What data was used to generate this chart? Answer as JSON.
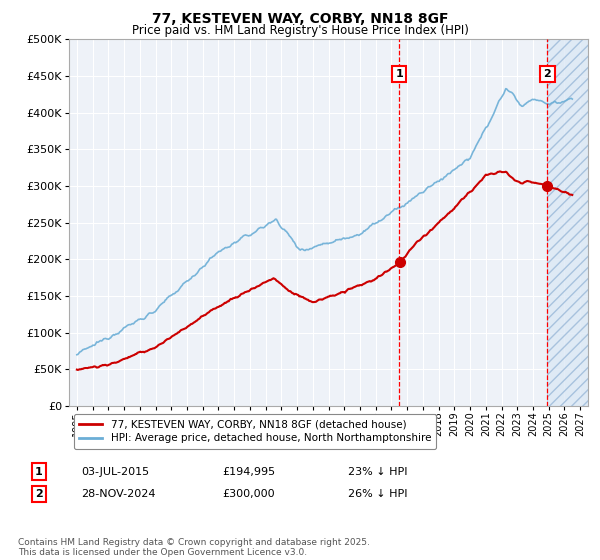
{
  "title": "77, KESTEVEN WAY, CORBY, NN18 8GF",
  "subtitle": "Price paid vs. HM Land Registry's House Price Index (HPI)",
  "ylim": [
    0,
    500000
  ],
  "yticks": [
    0,
    50000,
    100000,
    150000,
    200000,
    250000,
    300000,
    350000,
    400000,
    450000,
    500000
  ],
  "xlim_start": 1994.5,
  "xlim_end": 2027.5,
  "hpi_color": "#6baed6",
  "price_color": "#cc0000",
  "marker1_date": 2015.5,
  "marker2_date": 2024.92,
  "transaction1": {
    "date": "03-JUL-2015",
    "price": 194995,
    "pct": "23% ↓ HPI"
  },
  "transaction2": {
    "date": "28-NOV-2024",
    "price": 300000,
    "pct": "26% ↓ HPI"
  },
  "legend_label1": "77, KESTEVEN WAY, CORBY, NN18 8GF (detached house)",
  "legend_label2": "HPI: Average price, detached house, North Northamptonshire",
  "footer": "Contains HM Land Registry data © Crown copyright and database right 2025.\nThis data is licensed under the Open Government Licence v3.0.",
  "background_color": "#eef2f8",
  "hatch_start": 2024.92
}
